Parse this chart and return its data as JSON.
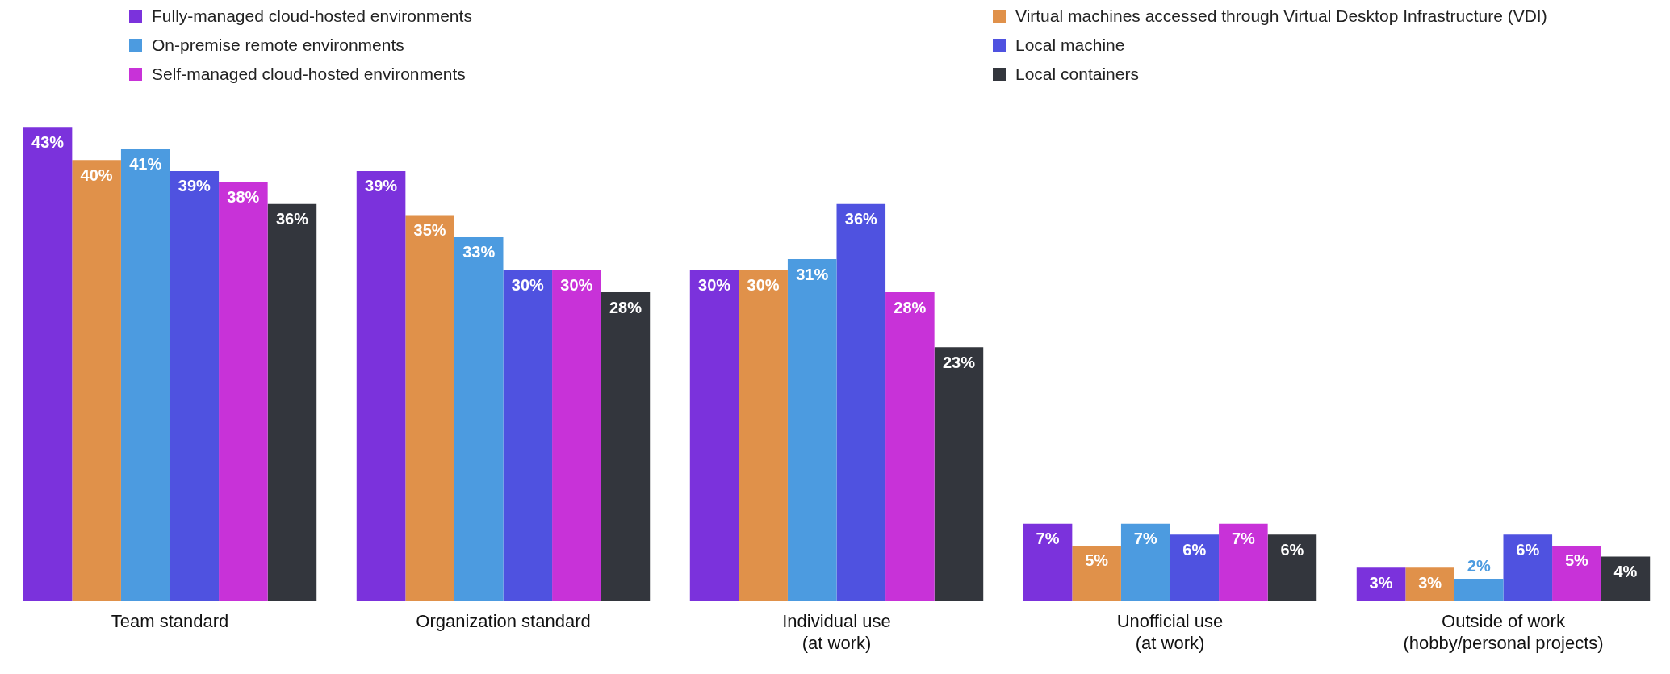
{
  "chart_data": {
    "type": "bar",
    "categories": [
      "Team standard",
      "Organization standard",
      "Individual use\n(at work)",
      "Unofficial use\n(at work)",
      "Outside of work\n(hobby/personal projects)"
    ],
    "series": [
      {
        "name": "Fully-managed cloud-hosted environments",
        "color": "#7b32dc",
        "values": [
          43,
          39,
          30,
          7,
          3
        ],
        "value_labels": [
          "43%",
          "39%",
          "30%",
          "7%",
          "3%"
        ]
      },
      {
        "name": "Virtual machines accessed through Virtual Desktop Infrastructure (VDI)",
        "color": "#e0914a",
        "values": [
          40,
          35,
          30,
          5,
          3
        ],
        "value_labels": [
          "40%",
          "35%",
          "30%",
          "5%",
          "3%"
        ]
      },
      {
        "name": "On-premise remote environments",
        "color": "#4c9be0",
        "values": [
          41,
          33,
          31,
          7,
          2
        ],
        "value_labels": [
          "41%",
          "33%",
          "31%",
          "7%",
          "2%"
        ]
      },
      {
        "name": "Local machine",
        "color": "#4f52e0",
        "values": [
          39,
          30,
          36,
          6,
          6
        ],
        "value_labels": [
          "39%",
          "30%",
          "36%",
          "6%",
          "6%"
        ]
      },
      {
        "name": "Self-managed cloud-hosted environments",
        "color": "#c832d8",
        "values": [
          38,
          30,
          28,
          7,
          5
        ],
        "value_labels": [
          "38%",
          "30%",
          "28%",
          "7%",
          "5%"
        ]
      },
      {
        "name": "Local containers",
        "color": "#33363d",
        "values": [
          36,
          28,
          23,
          6,
          4
        ],
        "value_labels": [
          "36%",
          "28%",
          "23%",
          "6%",
          "4%"
        ]
      }
    ],
    "legend": "top",
    "grid": false
  }
}
